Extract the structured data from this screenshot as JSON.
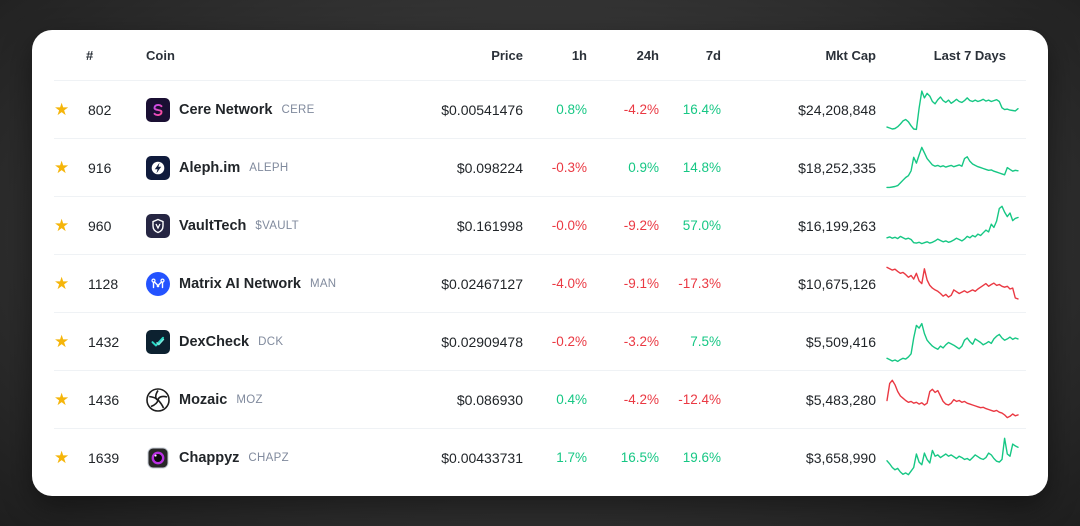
{
  "colors": {
    "green": "#16c784",
    "red": "#ea3943",
    "star_yellow": "#f5b50a",
    "text_dark": "#212529",
    "ticker_grey": "#808a9d",
    "divider": "#eff2f5",
    "card_background": "#ffffff",
    "page_background": "#2e2e2e"
  },
  "table": {
    "headers": {
      "rank": "#",
      "coin": "Coin",
      "price": "Price",
      "h1": "1h",
      "h24": "24h",
      "d7": "7d",
      "mktcap": "Mkt Cap",
      "last7d": "Last 7 Days"
    },
    "star_icon_glyph": "★",
    "rows": [
      {
        "rank": "802",
        "name": "Cere Network",
        "ticker": "CERE",
        "price": "$0.00541476",
        "h1": "0.8%",
        "h24": "-4.2%",
        "d7": "16.4%",
        "mktcap": "$24,208,848",
        "spark_color": "green",
        "icon": {
          "type": "cere",
          "bg": "#1a0f33",
          "fg": "#c44cf0",
          "fg2": "#ff4d97"
        },
        "spark": [
          13,
          11,
          9,
          10,
          14,
          20,
          27,
          30,
          25,
          16,
          9,
          8,
          55,
          93,
          78,
          88,
          82,
          70,
          65,
          74,
          80,
          72,
          68,
          73,
          66,
          70,
          75,
          70,
          68,
          72,
          78,
          72,
          70,
          73,
          70,
          72,
          75,
          71,
          73,
          70,
          72,
          74,
          70,
          56,
          52,
          53,
          51,
          50,
          49,
          54
        ]
      },
      {
        "rank": "916",
        "name": "Aleph.im",
        "ticker": "ALEPH",
        "price": "$0.098224",
        "h1": "-0.3%",
        "h24": "0.9%",
        "d7": "14.8%",
        "mktcap": "$18,252,335",
        "spark_color": "green",
        "icon": {
          "type": "aleph",
          "bg": "#101b3c",
          "fg": "#ffffff",
          "fg2": "#101b3c"
        },
        "spark": [
          8,
          8,
          9,
          10,
          12,
          18,
          24,
          30,
          34,
          45,
          75,
          62,
          80,
          97,
          85,
          72,
          65,
          58,
          55,
          57,
          54,
          56,
          53,
          55,
          57,
          54,
          56,
          58,
          55,
          72,
          76,
          66,
          60,
          57,
          54,
          52,
          50,
          48,
          46,
          47,
          44,
          42,
          40,
          38,
          36,
          52,
          48,
          44,
          46,
          45
        ]
      },
      {
        "rank": "960",
        "name": "VaultTech",
        "ticker": "$VAULT",
        "price": "$0.161998",
        "h1": "-0.0%",
        "h24": "-9.2%",
        "d7": "57.0%",
        "mktcap": "$16,199,263",
        "spark_color": "green",
        "icon": {
          "type": "vaulttech",
          "bg": "#262643",
          "fg": "#ffffff",
          "fg2": "#262643"
        },
        "spark": [
          25,
          27,
          24,
          26,
          23,
          28,
          25,
          22,
          24,
          21,
          14,
          13,
          15,
          12,
          14,
          16,
          13,
          15,
          18,
          22,
          19,
          16,
          18,
          15,
          17,
          20,
          24,
          21,
          18,
          22,
          28,
          25,
          30,
          27,
          33,
          30,
          36,
          42,
          38,
          55,
          48,
          62,
          90,
          95,
          82,
          72,
          80,
          63,
          68,
          70
        ]
      },
      {
        "rank": "1128",
        "name": "Matrix AI Network",
        "ticker": "MAN",
        "price": "$0.02467127",
        "h1": "-4.0%",
        "h24": "-9.1%",
        "d7": "-17.3%",
        "mktcap": "$10,675,126",
        "spark_color": "red",
        "icon": {
          "type": "matrix",
          "bg": "#2453ff",
          "fg": "#ffffff",
          "fg2": "#2453ff"
        },
        "spark": [
          88,
          85,
          82,
          84,
          79,
          75,
          77,
          72,
          66,
          70,
          62,
          75,
          58,
          52,
          85,
          60,
          48,
          42,
          38,
          35,
          30,
          24,
          28,
          22,
          26,
          38,
          34,
          30,
          33,
          36,
          32,
          35,
          38,
          35,
          40,
          44,
          48,
          52,
          46,
          50,
          53,
          48,
          50,
          46,
          44,
          46,
          40,
          42,
          20,
          18
        ]
      },
      {
        "rank": "1432",
        "name": "DexCheck",
        "ticker": "DCK",
        "price": "$0.02909478",
        "h1": "-0.2%",
        "h24": "-3.2%",
        "d7": "7.5%",
        "mktcap": "$5,509,416",
        "spark_color": "green",
        "icon": {
          "type": "dexcheck",
          "bg": "#0c2130",
          "fg": "#2bd9c7",
          "fg2": "#7de8dc"
        },
        "spark": [
          15,
          12,
          9,
          11,
          8,
          12,
          15,
          13,
          18,
          25,
          60,
          88,
          82,
          92,
          70,
          55,
          48,
          42,
          38,
          35,
          42,
          38,
          45,
          50,
          47,
          44,
          40,
          36,
          42,
          55,
          60,
          52,
          46,
          58,
          54,
          50,
          45,
          48,
          52,
          48,
          58,
          64,
          68,
          60,
          55,
          58,
          62,
          57,
          60,
          58
        ]
      },
      {
        "rank": "1436",
        "name": "Mozaic",
        "ticker": "MOZ",
        "price": "$0.086930",
        "h1": "0.4%",
        "h24": "-4.2%",
        "d7": "-12.4%",
        "mktcap": "$5,483,280",
        "spark_color": "red",
        "icon": {
          "type": "mozaic",
          "bg": "#ffffff",
          "fg": "#1d1d1d",
          "fg2": "#1d1d1d"
        },
        "spark": [
          50,
          88,
          95,
          85,
          70,
          60,
          55,
          50,
          46,
          48,
          44,
          46,
          42,
          45,
          40,
          44,
          70,
          75,
          68,
          72,
          60,
          48,
          42,
          40,
          44,
          52,
          48,
          50,
          46,
          48,
          44,
          42,
          40,
          38,
          36,
          34,
          35,
          32,
          30,
          28,
          26,
          28,
          24,
          22,
          18,
          12,
          15,
          20,
          16,
          18
        ]
      },
      {
        "rank": "1639",
        "name": "Chappyz",
        "ticker": "CHAPZ",
        "price": "$0.00433731",
        "h1": "1.7%",
        "h24": "16.5%",
        "d7": "19.6%",
        "mktcap": "$3,658,990",
        "spark_color": "green",
        "icon": {
          "type": "chappyz",
          "bg": "#282828",
          "fg": "#b92fe3",
          "fg2": "#0d0d0d"
        },
        "spark": [
          45,
          38,
          30,
          25,
          28,
          20,
          15,
          18,
          14,
          22,
          30,
          60,
          42,
          36,
          62,
          48,
          40,
          68,
          55,
          58,
          52,
          56,
          60,
          55,
          58,
          54,
          50,
          55,
          52,
          48,
          50,
          46,
          52,
          58,
          54,
          50,
          48,
          52,
          62,
          58,
          50,
          44,
          42,
          48,
          95,
          60,
          55,
          82,
          78,
          75
        ]
      }
    ]
  }
}
